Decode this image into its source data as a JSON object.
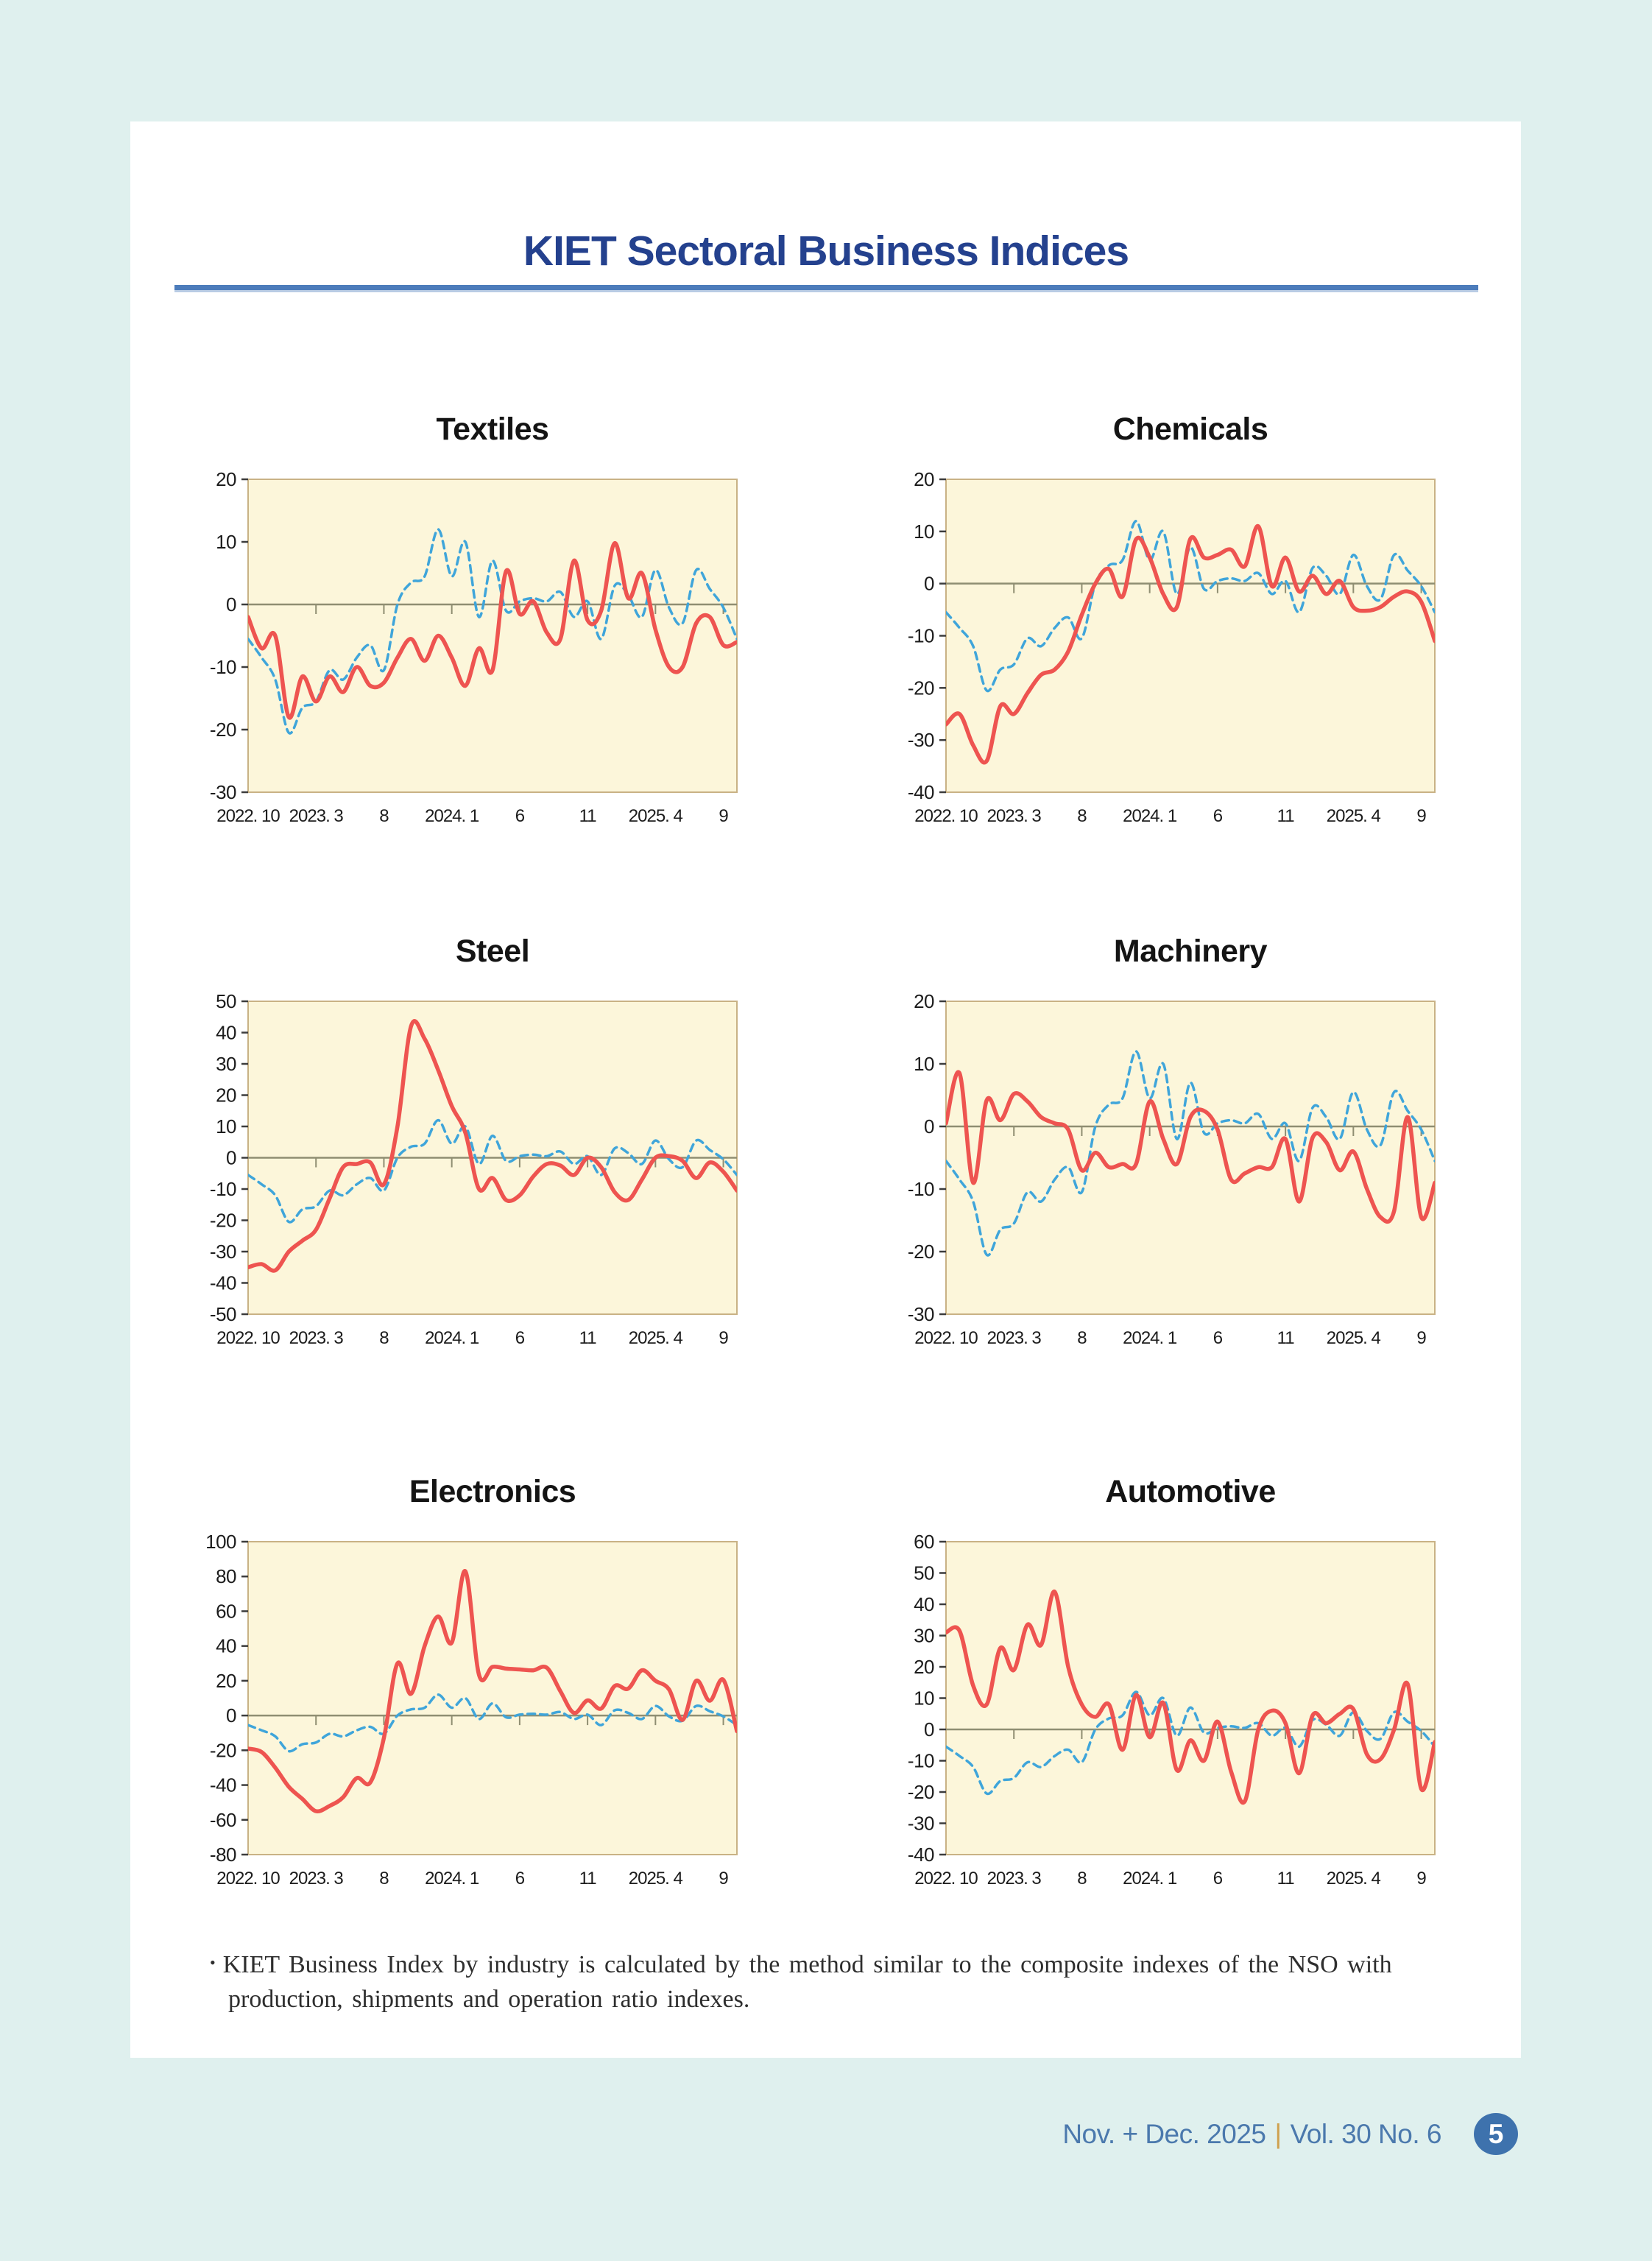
{
  "page": {
    "title": "KIET Sectoral Business Indices",
    "footnote": {
      "bullet": "•",
      "line1": "KIET Business Index by industry is calculated by the method similar to the composite indexes of the NSO with",
      "line2": "production, shipments and operation ratio indexes."
    },
    "footer": {
      "issue": "Nov. + Dec. 2025",
      "divider": "|",
      "volume": "Vol. 30  No. 6",
      "page_number": "5"
    }
  },
  "colors": {
    "page_bg": "#dff0ee",
    "card_bg": "#ffffff",
    "doc_title": "#24418e",
    "title_rule": "#4c7cbb",
    "plot_bg": "#fcf6da",
    "plot_border": "#c9b285",
    "zero_line": "#8f8e72",
    "axis_tick": "#3c3c3c",
    "tick_label": "#1c1c1c",
    "sector_line": "#ee5450",
    "reference_line": "#3fa5da",
    "footer_text": "#4b79ad",
    "footer_divider": "#cfa14f",
    "badge_bg": "#3e72ad"
  },
  "chart_data": [
    {
      "type": "line",
      "title": "Textiles",
      "x_start": "2022.10",
      "x_points": 37,
      "x_tick_labels": [
        "2022. 10",
        "2023. 3",
        "8",
        "2024. 1",
        "6",
        "11",
        "2025. 4",
        "9"
      ],
      "x_tick_indices": [
        0,
        5,
        10,
        15,
        20,
        25,
        30,
        35
      ],
      "ylim": [
        -30,
        20
      ],
      "ytick_step": 10,
      "grid": false,
      "legend": "none",
      "series": [
        {
          "name": "industry index (red solid)",
          "color": "#ee5450",
          "style": "solid",
          "values": [
            -2,
            -7,
            -5,
            -18,
            -11.5,
            -15.5,
            -11.5,
            -14,
            -10,
            -13,
            -12.5,
            -8.5,
            -5.5,
            -9,
            -5,
            -8.5,
            -13,
            -7,
            -10.5,
            5.3,
            -1.5,
            0.5,
            -4.5,
            -5.5,
            7,
            -2.5,
            -1,
            9.8,
            1,
            5,
            -4,
            -10,
            -10,
            -3,
            -2,
            -6.5,
            -6
          ]
        },
        {
          "name": "comparison index (blue dashed)",
          "color": "#3fa5da",
          "style": "dashed",
          "values": [
            -5.5,
            -8.5,
            -12,
            -20.5,
            -16.5,
            -15.5,
            -10.5,
            -12,
            -8.5,
            -6.5,
            -10.5,
            0,
            3.5,
            4.5,
            12,
            4.5,
            10,
            -2,
            7,
            -1,
            0.5,
            1,
            0.5,
            2,
            -2,
            0.5,
            -5.5,
            3,
            1.5,
            -2,
            5.5,
            -0.5,
            -3,
            5.5,
            2.5,
            -0.5,
            -5.5
          ]
        }
      ]
    },
    {
      "type": "line",
      "title": "Chemicals",
      "x_start": "2022.10",
      "x_points": 37,
      "x_tick_labels": [
        "2022. 10",
        "2023. 3",
        "8",
        "2024. 1",
        "6",
        "11",
        "2025. 4",
        "9"
      ],
      "x_tick_indices": [
        0,
        5,
        10,
        15,
        20,
        25,
        30,
        35
      ],
      "ylim": [
        -40,
        20
      ],
      "ytick_step": 10,
      "grid": false,
      "legend": "none",
      "series": [
        {
          "name": "industry index (red solid)",
          "color": "#ee5450",
          "style": "solid",
          "values": [
            -27,
            -25,
            -31,
            -34,
            -23.5,
            -25,
            -21,
            -17.5,
            -16.5,
            -13,
            -6,
            0,
            2.8,
            -2.5,
            8.5,
            5,
            -2,
            -4.5,
            8.6,
            5,
            5.5,
            6.5,
            3.3,
            11,
            -0.5,
            5,
            -1.5,
            1.5,
            -2,
            0.5,
            -4.5,
            -5.2,
            -4.5,
            -2.5,
            -1.5,
            -3.5,
            -11
          ]
        },
        {
          "name": "comparison index (blue dashed)",
          "color": "#3fa5da",
          "style": "dashed",
          "values": [
            -5.5,
            -8.5,
            -12,
            -20.5,
            -16.5,
            -15.5,
            -10.5,
            -12,
            -8.5,
            -6.5,
            -10.5,
            0,
            3.5,
            4.5,
            12,
            4.5,
            10,
            -2,
            7,
            -1,
            0.5,
            1,
            0.5,
            2,
            -2,
            0.5,
            -5.5,
            3,
            1.5,
            -2,
            5.5,
            -0.5,
            -3,
            5.5,
            2.5,
            -0.5,
            -5.5
          ]
        }
      ]
    },
    {
      "type": "line",
      "title": "Steel",
      "x_start": "2022.10",
      "x_points": 37,
      "x_tick_labels": [
        "2022. 10",
        "2023. 3",
        "8",
        "2024. 1",
        "6",
        "11",
        "2025. 4",
        "9"
      ],
      "x_tick_indices": [
        0,
        5,
        10,
        15,
        20,
        25,
        30,
        35
      ],
      "ylim": [
        -50,
        50
      ],
      "ytick_step": 10,
      "grid": false,
      "legend": "none",
      "series": [
        {
          "name": "industry index (red solid)",
          "color": "#ee5450",
          "style": "solid",
          "values": [
            -35,
            -34,
            -36,
            -30,
            -26.5,
            -23,
            -13,
            -3,
            -2,
            -1.5,
            -8.5,
            10,
            42,
            38,
            28,
            16.5,
            8,
            -10,
            -6.5,
            -13.5,
            -12,
            -6,
            -2,
            -2.5,
            -5.5,
            0,
            -3,
            -11,
            -13.5,
            -7,
            0,
            0.5,
            -1,
            -6.5,
            -1.5,
            -4.5,
            -10.5
          ]
        },
        {
          "name": "comparison index (blue dashed)",
          "color": "#3fa5da",
          "style": "dashed",
          "values": [
            -5.5,
            -8.5,
            -12,
            -20.5,
            -16.5,
            -15.5,
            -10.5,
            -12,
            -8.5,
            -6.5,
            -10.5,
            0,
            3.5,
            4.5,
            12,
            4.5,
            10,
            -2,
            7,
            -1,
            0.5,
            1,
            0.5,
            2,
            -2,
            0.5,
            -5.5,
            3,
            1.5,
            -2,
            5.5,
            -0.5,
            -3,
            5.5,
            2.5,
            -0.5,
            -5.5
          ]
        }
      ]
    },
    {
      "type": "line",
      "title": "Machinery",
      "x_start": "2022.10",
      "x_points": 37,
      "x_tick_labels": [
        "2022. 10",
        "2023. 3",
        "8",
        "2024. 1",
        "6",
        "11",
        "2025. 4",
        "9"
      ],
      "x_tick_indices": [
        0,
        5,
        10,
        15,
        20,
        25,
        30,
        35
      ],
      "ylim": [
        -30,
        20
      ],
      "ytick_step": 10,
      "grid": false,
      "legend": "none",
      "series": [
        {
          "name": "industry index (red solid)",
          "color": "#ee5450",
          "style": "solid",
          "values": [
            0.5,
            8.5,
            -9,
            4.2,
            1,
            5.2,
            4,
            1.5,
            0.5,
            -0.5,
            -7,
            -4.2,
            -6.5,
            -6,
            -6,
            4,
            -2,
            -6,
            1.5,
            2.5,
            -0.5,
            -8.5,
            -7.5,
            -6.5,
            -6.5,
            -2,
            -12,
            -1.8,
            -2.5,
            -7,
            -4,
            -10,
            -14.5,
            -13.5,
            1.5,
            -14.5,
            -9
          ]
        },
        {
          "name": "comparison index (blue dashed)",
          "color": "#3fa5da",
          "style": "dashed",
          "values": [
            -5.5,
            -8.5,
            -12,
            -20.5,
            -16.5,
            -15.5,
            -10.5,
            -12,
            -8.5,
            -6.5,
            -10.5,
            0,
            3.5,
            4.5,
            12,
            4.5,
            10,
            -2,
            7,
            -1,
            0.5,
            1,
            0.5,
            2,
            -2,
            0.5,
            -5.5,
            3,
            1.5,
            -2,
            5.5,
            -0.5,
            -3,
            5.5,
            2.5,
            -0.5,
            -5.5
          ]
        }
      ]
    },
    {
      "type": "line",
      "title": "Electronics",
      "x_start": "2022.10",
      "x_points": 37,
      "x_tick_labels": [
        "2022. 10",
        "2023. 3",
        "8",
        "2024. 1",
        "6",
        "11",
        "2025. 4",
        "9"
      ],
      "x_tick_indices": [
        0,
        5,
        10,
        15,
        20,
        25,
        30,
        35
      ],
      "ylim": [
        -80,
        100
      ],
      "ytick_step": 20,
      "grid": false,
      "legend": "none",
      "series": [
        {
          "name": "industry index (red solid)",
          "color": "#ee5450",
          "style": "solid",
          "values": [
            -19,
            -21,
            -30,
            -41,
            -48,
            -55,
            -52,
            -47,
            -36,
            -38.5,
            -13,
            30,
            12.5,
            40,
            57,
            42,
            83,
            23.5,
            28,
            27,
            26.5,
            26,
            27.5,
            14,
            1.5,
            8.7,
            4,
            17,
            15.5,
            26,
            20,
            15,
            -2.5,
            20,
            8.5,
            20.5,
            -9
          ]
        },
        {
          "name": "comparison index (blue dashed)",
          "color": "#3fa5da",
          "style": "dashed",
          "values": [
            -5.5,
            -8.5,
            -12,
            -20.5,
            -16.5,
            -15.5,
            -10.5,
            -12,
            -8.5,
            -6.5,
            -10.5,
            0,
            3.5,
            4.5,
            12,
            4.5,
            10,
            -2,
            7,
            -1,
            0.5,
            1,
            0.5,
            2,
            -2,
            0.5,
            -5.5,
            3,
            1.5,
            -2,
            5.5,
            -0.5,
            -3,
            5.5,
            2.5,
            -0.5,
            -5.5
          ]
        }
      ]
    },
    {
      "type": "line",
      "title": "Automotive",
      "x_start": "2022.10",
      "x_points": 37,
      "x_tick_labels": [
        "2022. 10",
        "2023. 3",
        "8",
        "2024. 1",
        "6",
        "11",
        "2025. 4",
        "9"
      ],
      "x_tick_indices": [
        0,
        5,
        10,
        15,
        20,
        25,
        30,
        35
      ],
      "ylim": [
        -40,
        60
      ],
      "ytick_step": 10,
      "grid": false,
      "legend": "none",
      "series": [
        {
          "name": "industry index (red solid)",
          "color": "#ee5450",
          "style": "solid",
          "values": [
            31,
            31.5,
            14,
            8,
            26,
            19,
            33.5,
            27,
            44,
            20,
            8,
            4,
            8,
            -6.5,
            11,
            -2.5,
            8.5,
            -13,
            -3.5,
            -10,
            2.5,
            -13.5,
            -23,
            0,
            6,
            2,
            -14,
            4.5,
            2,
            5,
            6.5,
            -8,
            -9.5,
            0,
            14.5,
            -19,
            -4
          ]
        },
        {
          "name": "comparison index (blue dashed)",
          "color": "#3fa5da",
          "style": "dashed",
          "values": [
            -5.5,
            -8.5,
            -12,
            -20.5,
            -16.5,
            -15.5,
            -10.5,
            -12,
            -8.5,
            -6.5,
            -10.5,
            0,
            3.5,
            4.5,
            12,
            4.5,
            10,
            -2,
            7,
            -1,
            0.5,
            1,
            0.5,
            2,
            -2,
            0.5,
            -5.5,
            3,
            1.5,
            -2,
            5.5,
            -0.5,
            -3,
            5.5,
            2.5,
            -0.5,
            -5.5
          ]
        }
      ]
    }
  ]
}
